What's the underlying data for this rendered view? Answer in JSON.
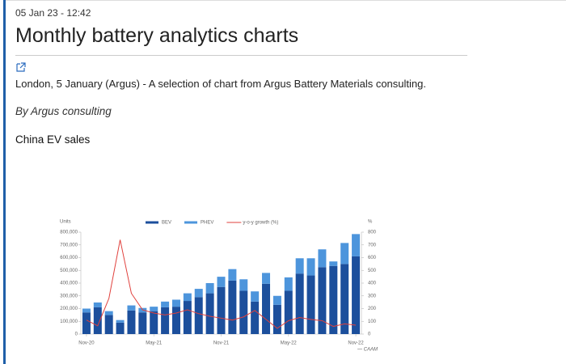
{
  "header": {
    "date": "05 Jan 23 - 12:42",
    "title": "Monthly battery analytics charts"
  },
  "article": {
    "lead": "London, 5 January (Argus) - A selection of chart from Argus Battery Materials consulting.",
    "byline": "By Argus consulting",
    "section": "China EV sales"
  },
  "chart_data": {
    "type": "bar",
    "stacked": true,
    "y_label": "Units",
    "y2_label": "%",
    "source": "— CAAM",
    "categories": [
      "Nov-20",
      null,
      null,
      null,
      null,
      null,
      "May-21",
      null,
      null,
      null,
      null,
      null,
      "Nov-21",
      null,
      null,
      null,
      null,
      null,
      "May-22",
      null,
      null,
      null,
      null,
      null,
      "Nov-22"
    ],
    "series": [
      {
        "name": "BEV",
        "color": "#1c4f9c",
        "values": [
          170000,
          210000,
          150000,
          90000,
          185000,
          170000,
          180000,
          210000,
          215000,
          260000,
          290000,
          320000,
          370000,
          420000,
          340000,
          255000,
          395000,
          230000,
          340000,
          475000,
          460000,
          525000,
          535000,
          550000,
          610000
        ]
      },
      {
        "name": "PHEV",
        "color": "#4d95dc",
        "values": [
          30000,
          38000,
          30000,
          20000,
          40000,
          35000,
          35000,
          45000,
          55000,
          60000,
          65000,
          80000,
          80000,
          90000,
          90000,
          80000,
          85000,
          70000,
          105000,
          120000,
          135000,
          140000,
          35000,
          165000,
          175000
        ]
      },
      {
        "name": "y-o-y growth (%)",
        "color": "#e0403c",
        "axis": "y2",
        "values": [
          110,
          65,
          280,
          740,
          320,
          190,
          165,
          150,
          165,
          190,
          160,
          140,
          125,
          110,
          135,
          185,
          115,
          45,
          105,
          130,
          115,
          105,
          60,
          80,
          70
        ]
      }
    ],
    "ylim": [
      0,
      800000
    ],
    "yticks": [
      0,
      {
        "value": 100000,
        "label": "100,000"
      },
      {
        "value": 200000,
        "label": "200,000"
      },
      {
        "value": 300000,
        "label": "300,000"
      },
      {
        "value": 400000,
        "label": "400,000"
      },
      {
        "value": 500000,
        "label": "500,000"
      },
      {
        "value": 600000,
        "label": "600,000"
      },
      {
        "value": 700000,
        "label": "700,000"
      },
      {
        "value": 800000,
        "label": "800,000"
      }
    ],
    "y2lim": [
      0,
      800
    ],
    "y2ticks": [
      0,
      100,
      200,
      300,
      400,
      500,
      600,
      700,
      800
    ],
    "legend": "top"
  }
}
